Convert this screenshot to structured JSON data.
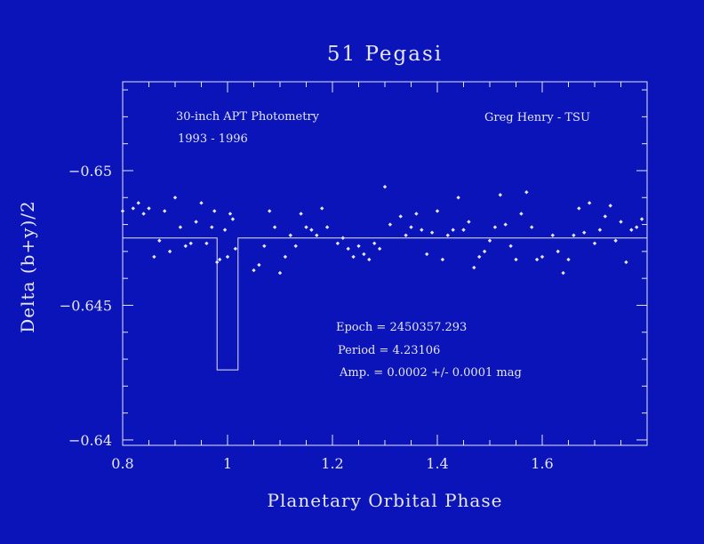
{
  "chart_data": {
    "type": "scatter",
    "title": "51 Pegasi",
    "xlabel": "Planetary Orbital Phase",
    "ylabel": "Delta (b+y)/2",
    "xlim": [
      0.8,
      1.8
    ],
    "ylim": [
      -0.6533,
      -0.6398
    ],
    "y_axis_inverted": true,
    "x_ticks": [
      0.8,
      1.0,
      1.2,
      1.4,
      1.6
    ],
    "x_tick_labels": [
      "0.8",
      "1",
      "1.2",
      "1.4",
      "1.6"
    ],
    "y_ticks": [
      -0.65,
      -0.645,
      -0.64
    ],
    "y_tick_labels": [
      "−0.65",
      "−0.645",
      "−0.64"
    ],
    "grid": false,
    "annotations": {
      "instrument": "30-inch APT Photometry",
      "years": "1993 - 1996",
      "author": "Greg Henry - TSU",
      "epoch": "Epoch = 2450357.293",
      "period": "Period = 4.23106",
      "amplitude": "Amp. = 0.0002 +/- 0.0001 mag"
    },
    "model": {
      "baseline": -0.6475,
      "transit_depth": 0.0049,
      "transit_start": 0.98,
      "transit_end": 1.02
    },
    "points": [
      [
        0.8,
        -0.6485
      ],
      [
        0.82,
        -0.6486
      ],
      [
        0.83,
        -0.6488
      ],
      [
        0.84,
        -0.6484
      ],
      [
        0.85,
        -0.6486
      ],
      [
        0.86,
        -0.6468
      ],
      [
        0.87,
        -0.6474
      ],
      [
        0.88,
        -0.6485
      ],
      [
        0.89,
        -0.647
      ],
      [
        0.9,
        -0.649
      ],
      [
        0.91,
        -0.6479
      ],
      [
        0.92,
        -0.6472
      ],
      [
        0.93,
        -0.6473
      ],
      [
        0.94,
        -0.6481
      ],
      [
        0.95,
        -0.6488
      ],
      [
        0.96,
        -0.6473
      ],
      [
        0.97,
        -0.6479
      ],
      [
        0.975,
        -0.6485
      ],
      [
        0.985,
        -0.6467
      ],
      [
        0.995,
        -0.6478
      ],
      [
        1.005,
        -0.6484
      ],
      [
        1.015,
        -0.6471
      ],
      [
        0.98,
        -0.6466
      ],
      [
        1.0,
        -0.6468
      ],
      [
        1.01,
        -0.6482
      ],
      [
        1.05,
        -0.6463
      ],
      [
        1.06,
        -0.6465
      ],
      [
        1.07,
        -0.6472
      ],
      [
        1.08,
        -0.6485
      ],
      [
        1.09,
        -0.6479
      ],
      [
        1.1,
        -0.6462
      ],
      [
        1.11,
        -0.6468
      ],
      [
        1.12,
        -0.6476
      ],
      [
        1.13,
        -0.6472
      ],
      [
        1.14,
        -0.6484
      ],
      [
        1.15,
        -0.6479
      ],
      [
        1.16,
        -0.6478
      ],
      [
        1.17,
        -0.6476
      ],
      [
        1.18,
        -0.6486
      ],
      [
        1.19,
        -0.6479
      ],
      [
        1.21,
        -0.6473
      ],
      [
        1.22,
        -0.6475
      ],
      [
        1.23,
        -0.6471
      ],
      [
        1.24,
        -0.6468
      ],
      [
        1.25,
        -0.6472
      ],
      [
        1.26,
        -0.6469
      ],
      [
        1.27,
        -0.6467
      ],
      [
        1.28,
        -0.6473
      ],
      [
        1.29,
        -0.6471
      ],
      [
        1.3,
        -0.6494
      ],
      [
        1.31,
        -0.648
      ],
      [
        1.33,
        -0.6483
      ],
      [
        1.34,
        -0.6476
      ],
      [
        1.35,
        -0.6479
      ],
      [
        1.36,
        -0.6484
      ],
      [
        1.37,
        -0.6478
      ],
      [
        1.38,
        -0.6469
      ],
      [
        1.39,
        -0.6477
      ],
      [
        1.4,
        -0.6485
      ],
      [
        1.41,
        -0.6467
      ],
      [
        1.42,
        -0.6476
      ],
      [
        1.43,
        -0.6478
      ],
      [
        1.44,
        -0.649
      ],
      [
        1.45,
        -0.6478
      ],
      [
        1.46,
        -0.6481
      ],
      [
        1.47,
        -0.6464
      ],
      [
        1.48,
        -0.6468
      ],
      [
        1.49,
        -0.647
      ],
      [
        1.5,
        -0.6474
      ],
      [
        1.51,
        -0.6479
      ],
      [
        1.52,
        -0.6491
      ],
      [
        1.53,
        -0.648
      ],
      [
        1.54,
        -0.6472
      ],
      [
        1.55,
        -0.6467
      ],
      [
        1.56,
        -0.6484
      ],
      [
        1.57,
        -0.6492
      ],
      [
        1.58,
        -0.6479
      ],
      [
        1.59,
        -0.6467
      ],
      [
        1.6,
        -0.6468
      ],
      [
        1.62,
        -0.6476
      ],
      [
        1.63,
        -0.647
      ],
      [
        1.64,
        -0.6462
      ],
      [
        1.65,
        -0.6467
      ],
      [
        1.66,
        -0.6476
      ],
      [
        1.67,
        -0.6486
      ],
      [
        1.68,
        -0.6477
      ],
      [
        1.69,
        -0.6488
      ],
      [
        1.7,
        -0.6473
      ],
      [
        1.71,
        -0.6478
      ],
      [
        1.72,
        -0.6483
      ],
      [
        1.73,
        -0.6487
      ],
      [
        1.74,
        -0.6474
      ],
      [
        1.75,
        -0.6481
      ],
      [
        1.76,
        -0.6466
      ],
      [
        1.77,
        -0.6478
      ],
      [
        1.78,
        -0.6479
      ],
      [
        1.79,
        -0.6482
      ]
    ]
  }
}
